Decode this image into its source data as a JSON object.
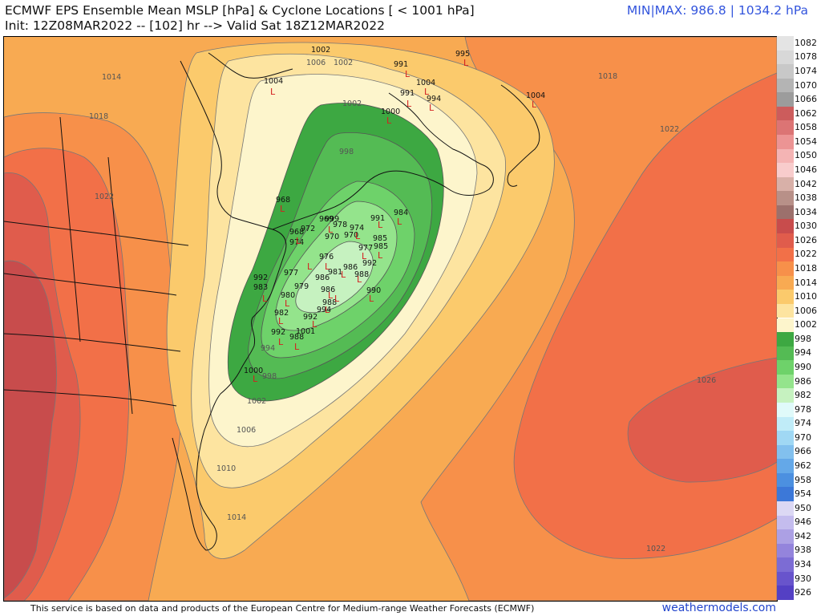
{
  "header": {
    "title_line1": "ECMWF EPS Ensemble Mean MSLP [hPa] & Cyclone Locations [ < 1001 hPa]",
    "title_line2": "Init: 12Z08MAR2022 -- [102] hr --> Valid Sat 18Z12MAR2022",
    "minmax": "MIN|MAX: 986.8 | 1034.2 hPa"
  },
  "footer": {
    "attribution": "This service is based on data and products of the European Centre for Medium-range Weather Forecasts (ECMWF)",
    "brand": "weathermodels.com"
  },
  "legend": [
    {
      "label": "1082",
      "color": "#e4e4e4"
    },
    {
      "label": "1078",
      "color": "#d8d8d8"
    },
    {
      "label": "1074",
      "color": "#c8c8c8"
    },
    {
      "label": "1070",
      "color": "#b4b4b4"
    },
    {
      "label": "1066",
      "color": "#9c9c9c"
    },
    {
      "label": "1062",
      "color": "#cc5c5c"
    },
    {
      "label": "1058",
      "color": "#dc7474"
    },
    {
      "label": "1054",
      "color": "#ec9494"
    },
    {
      "label": "1050",
      "color": "#f4b4b4"
    },
    {
      "label": "1046",
      "color": "#f8cccc"
    },
    {
      "label": "1042",
      "color": "#d8b0a8"
    },
    {
      "label": "1038",
      "color": "#b89088"
    },
    {
      "label": "1034",
      "color": "#9c706c"
    },
    {
      "label": "1030",
      "color": "#c84c4c"
    },
    {
      "label": "1026",
      "color": "#e05c4c"
    },
    {
      "label": "1022",
      "color": "#f27048"
    },
    {
      "label": "1018",
      "color": "#f7904a"
    },
    {
      "label": "1014",
      "color": "#f8aa52"
    },
    {
      "label": "1010",
      "color": "#fbca6c"
    },
    {
      "label": "1006",
      "color": "#fde4a0"
    },
    {
      "label": "1002",
      "color": "#fdf5cc"
    },
    {
      "label": "998",
      "color": "#3da842"
    },
    {
      "label": "994",
      "color": "#54bb54"
    },
    {
      "label": "990",
      "color": "#6ed26a"
    },
    {
      "label": "986",
      "color": "#94e48c"
    },
    {
      "label": "982",
      "color": "#c6f2c0"
    },
    {
      "label": "978",
      "color": "#e0fafa"
    },
    {
      "label": "974",
      "color": "#c0ecf8"
    },
    {
      "label": "970",
      "color": "#a0d8f4"
    },
    {
      "label": "966",
      "color": "#82c0ee"
    },
    {
      "label": "962",
      "color": "#64a8e8"
    },
    {
      "label": "958",
      "color": "#4c90e0"
    },
    {
      "label": "954",
      "color": "#3c78d8"
    },
    {
      "label": "950",
      "color": "#dcd8f4"
    },
    {
      "label": "946",
      "color": "#c4bcee"
    },
    {
      "label": "942",
      "color": "#aca0e4"
    },
    {
      "label": "938",
      "color": "#9484dc"
    },
    {
      "label": "934",
      "color": "#7c6cd4"
    },
    {
      "label": "930",
      "color": "#6854cc"
    },
    {
      "label": "926",
      "color": "#5440c4"
    }
  ],
  "contour_labels": [
    "1014",
    "1018",
    "1022",
    "1018",
    "1022",
    "1026",
    "1022",
    "1014",
    "1010",
    "1006",
    "1002",
    "998",
    "994",
    "1002",
    "1006",
    "1002",
    "998"
  ],
  "cyclone_labels": [
    "1002",
    "1004",
    "991",
    "991",
    "994",
    "1004",
    "1004",
    "995",
    "1000",
    "991",
    "968",
    "999",
    "978",
    "984",
    "969",
    "972",
    "974",
    "968",
    "974",
    "970",
    "977",
    "985",
    "985",
    "970",
    "992",
    "976",
    "977",
    "986",
    "992",
    "981",
    "988",
    "983",
    "980",
    "982",
    "979",
    "986",
    "986",
    "990",
    "988",
    "994",
    "992",
    "992",
    "1001",
    "988",
    "1000"
  ]
}
